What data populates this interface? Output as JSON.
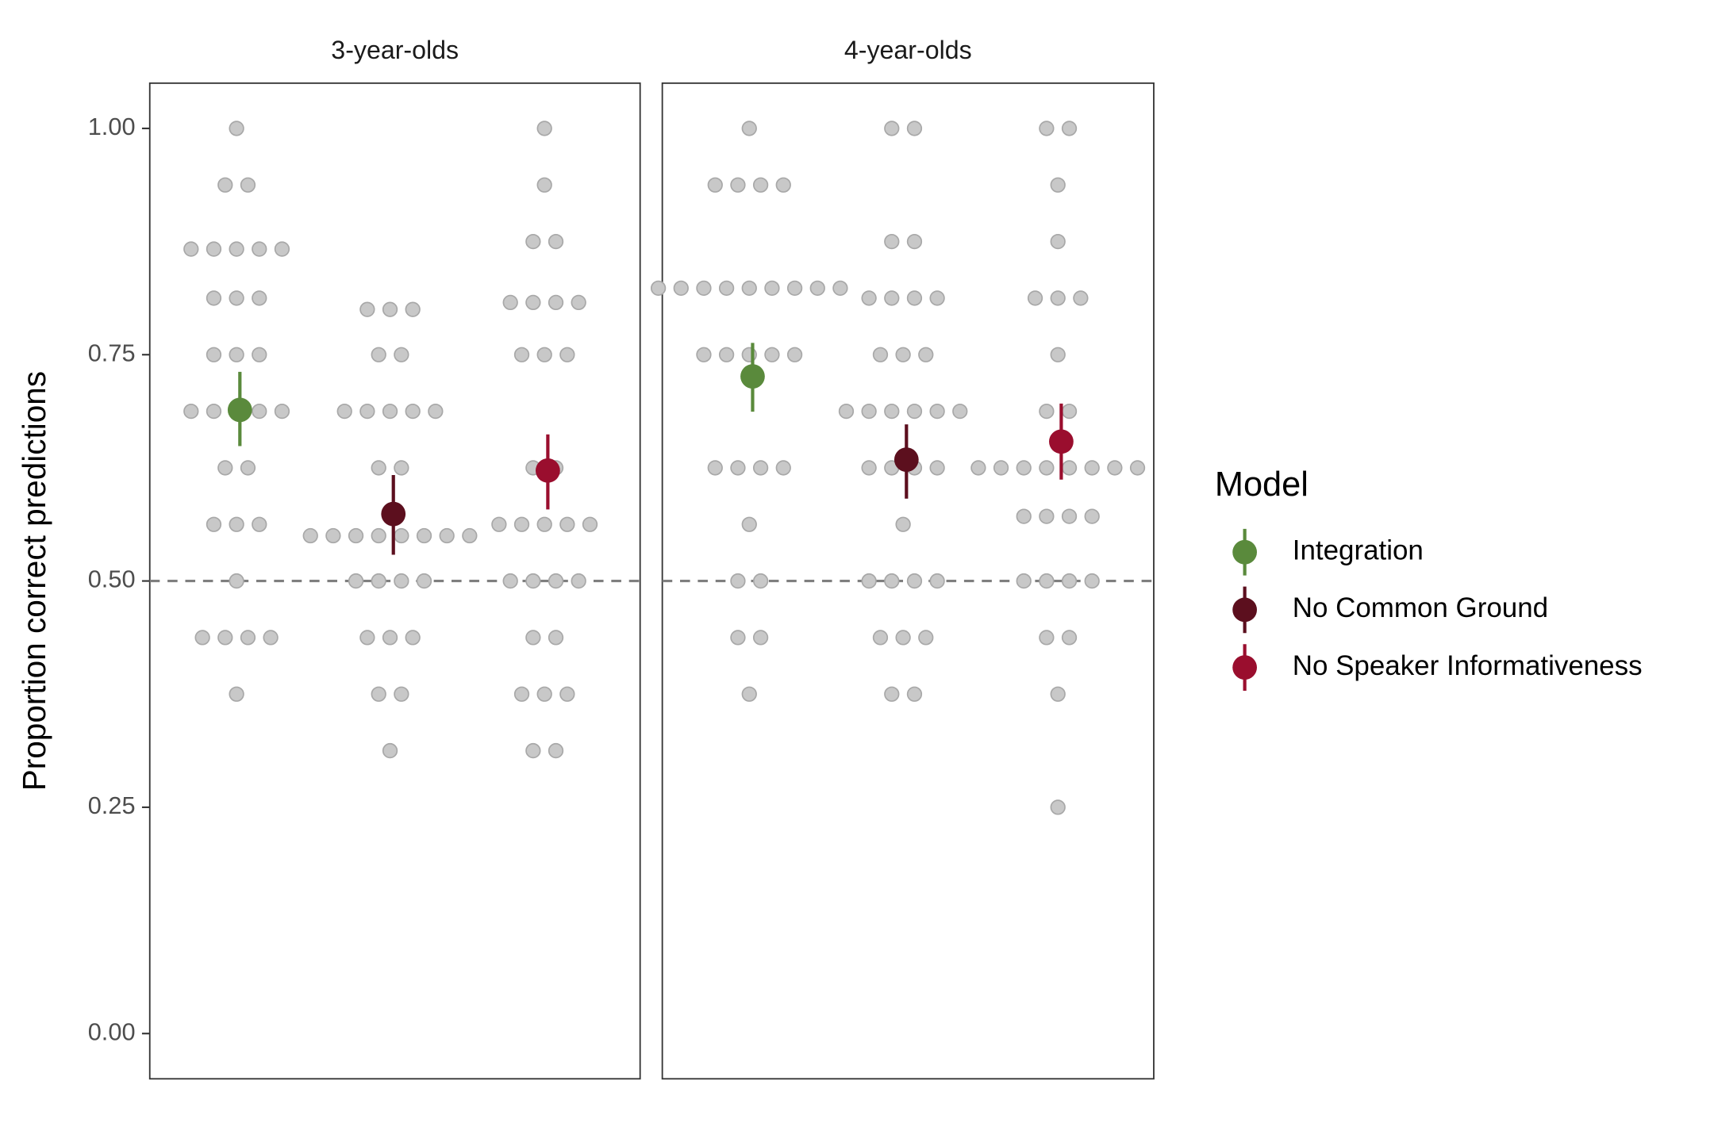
{
  "chart_data": {
    "type": "dotplot",
    "y_label": "Proportion correct predictions",
    "legend_title": "Model",
    "ylim": [
      -0.05,
      1.05
    ],
    "yticks": [
      {
        "value": 0,
        "label": "0.00"
      },
      {
        "value": 0.25,
        "label": "0.25"
      },
      {
        "value": 0.5,
        "label": "0.50"
      },
      {
        "value": 0.75,
        "label": "0.75"
      },
      {
        "value": 1,
        "label": "1.00"
      }
    ],
    "hline": 0.5,
    "models": [
      {
        "name": "Integration",
        "color": "#5a8a3c"
      },
      {
        "name": "No Common Ground",
        "color": "#5c0f1e"
      },
      {
        "name": "No Speaker Informativeness",
        "color": "#9a0e2e"
      }
    ],
    "panels": [
      {
        "title": "3-year-olds",
        "points": [
          [
            1,
            0.9375,
            0.9375,
            0.8667,
            0.8667,
            0.8667,
            0.8667,
            0.8667,
            0.8125,
            0.8125,
            0.8125,
            0.75,
            0.75,
            0.75,
            0.6875,
            0.6875,
            0.6875,
            0.6875,
            0.6875,
            0.625,
            0.625,
            0.5625,
            0.5625,
            0.5625,
            0.5,
            0.4375,
            0.4375,
            0.4375,
            0.4375,
            0.375
          ],
          [
            0.8,
            0.8,
            0.8,
            0.75,
            0.75,
            0.6875,
            0.6875,
            0.6875,
            0.6875,
            0.6875,
            0.625,
            0.625,
            0.55,
            0.55,
            0.55,
            0.55,
            0.55,
            0.55,
            0.55,
            0.55,
            0.5,
            0.5,
            0.5,
            0.5,
            0.4375,
            0.4375,
            0.4375,
            0.375,
            0.375,
            0.3125
          ],
          [
            1,
            0.9375,
            0.875,
            0.875,
            0.8077,
            0.8077,
            0.8077,
            0.8077,
            0.75,
            0.75,
            0.75,
            0.625,
            0.625,
            0.5625,
            0.5625,
            0.5625,
            0.5625,
            0.5625,
            0.5,
            0.5,
            0.5,
            0.5,
            0.4375,
            0.4375,
            0.375,
            0.375,
            0.375,
            0.3125,
            0.3125
          ]
        ],
        "means": [
          0.689,
          0.574,
          0.622
        ],
        "ci_low": [
          0.649,
          0.529,
          0.579
        ],
        "ci_high": [
          0.731,
          0.617,
          0.662
        ]
      },
      {
        "title": "4-year-olds",
        "points": [
          [
            1,
            0.9375,
            0.9375,
            0.9375,
            0.9375,
            0.8235,
            0.8235,
            0.8235,
            0.8235,
            0.8235,
            0.8235,
            0.8235,
            0.8235,
            0.8235,
            0.75,
            0.75,
            0.75,
            0.75,
            0.75,
            0.625,
            0.625,
            0.625,
            0.625,
            0.5625,
            0.5,
            0.5,
            0.4375,
            0.4375,
            0.375
          ],
          [
            1,
            1,
            0.875,
            0.875,
            0.8125,
            0.8125,
            0.8125,
            0.8125,
            0.75,
            0.75,
            0.75,
            0.6875,
            0.6875,
            0.6875,
            0.6875,
            0.6875,
            0.6875,
            0.625,
            0.625,
            0.625,
            0.625,
            0.5625,
            0.5,
            0.5,
            0.5,
            0.5,
            0.4375,
            0.4375,
            0.4375,
            0.375,
            0.375
          ],
          [
            1,
            1,
            0.9375,
            0.875,
            0.8125,
            0.8125,
            0.8125,
            0.75,
            0.6875,
            0.6875,
            0.625,
            0.625,
            0.625,
            0.625,
            0.625,
            0.625,
            0.625,
            0.625,
            0.5714,
            0.5714,
            0.5714,
            0.5714,
            0.5,
            0.5,
            0.5,
            0.5,
            0.4375,
            0.4375,
            0.375,
            0.25
          ]
        ],
        "means": [
          0.726,
          0.634,
          0.654
        ],
        "ci_low": [
          0.687,
          0.591,
          0.612
        ],
        "ci_high": [
          0.763,
          0.673,
          0.696
        ]
      }
    ]
  }
}
